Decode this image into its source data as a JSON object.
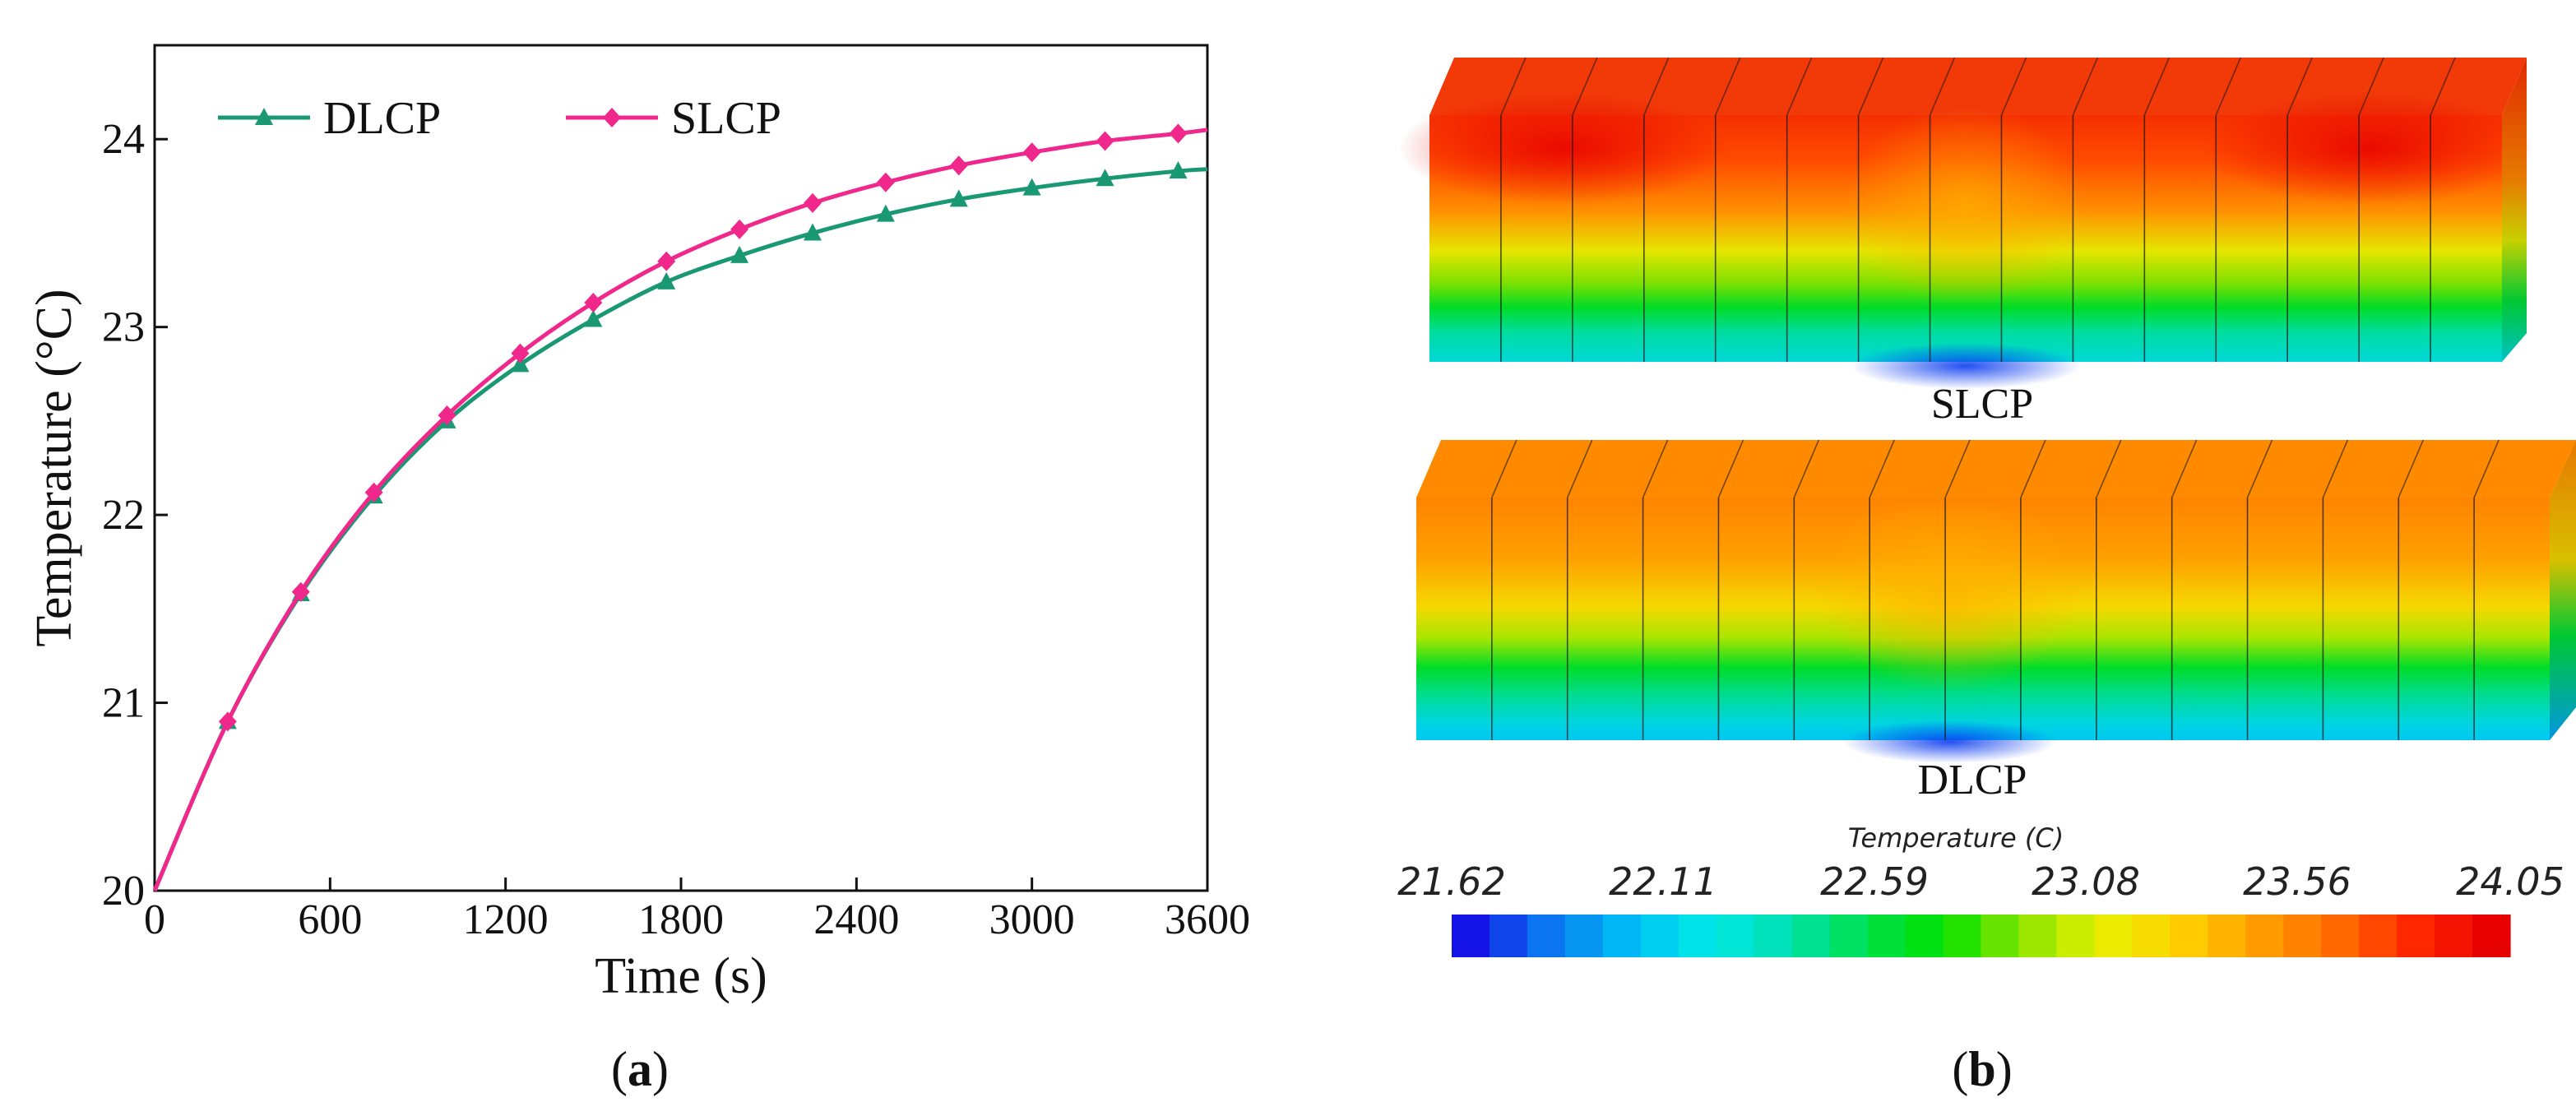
{
  "chart_data": [
    {
      "type": "line",
      "panel": "a",
      "xlabel": "Time (s)",
      "ylabel": "Temperature (°C)",
      "xlim": [
        0,
        3600
      ],
      "ylim": [
        20,
        24.5
      ],
      "xticks": [
        "0",
        "600",
        "1200",
        "1800",
        "2400",
        "3000",
        "3600"
      ],
      "yticks": [
        "20",
        "21",
        "22",
        "23",
        "24"
      ],
      "x": [
        0,
        250,
        500,
        750,
        1000,
        1250,
        1500,
        1750,
        2000,
        2250,
        2500,
        2750,
        3000,
        3250,
        3500,
        3600
      ],
      "series": [
        {
          "name": "DLCP",
          "color": "#1a9874",
          "marker": "triangle",
          "values": [
            20.0,
            20.9,
            21.58,
            22.1,
            22.5,
            22.8,
            23.04,
            23.24,
            23.38,
            23.5,
            23.6,
            23.68,
            23.74,
            23.79,
            23.83,
            23.84
          ]
        },
        {
          "name": "SLCP",
          "color": "#f0288c",
          "marker": "diamond",
          "values": [
            20.0,
            20.9,
            21.59,
            22.12,
            22.53,
            22.86,
            23.13,
            23.35,
            23.52,
            23.66,
            23.77,
            23.86,
            23.93,
            23.99,
            24.03,
            24.05
          ]
        }
      ],
      "legend": "top-left",
      "label_prefix": "(",
      "label_letter": "a",
      "label_suffix": ")"
    },
    {
      "type": "heatmap",
      "panel": "b",
      "title": "Temperature (C)",
      "colorbar_ticks": [
        "21.62",
        "22.11",
        "22.59",
        "23.08",
        "23.56",
        "24.05"
      ],
      "range": [
        21.62,
        24.05
      ],
      "colormap": [
        "#1414e6",
        "#0b78f0",
        "#00bcf5",
        "#00e8e8",
        "#00e0b4",
        "#00e050",
        "#00e000",
        "#8ae600",
        "#e6f000",
        "#ffd200",
        "#ffa000",
        "#ff6e00",
        "#ff2800",
        "#e60000"
      ],
      "cases": [
        {
          "name": "SLCP",
          "max_temp": 24.05,
          "cells": 15
        },
        {
          "name": "DLCP",
          "max_temp": 23.84,
          "cells": 15
        }
      ],
      "label_prefix": "(",
      "label_letter": "b",
      "label_suffix": ")"
    }
  ]
}
